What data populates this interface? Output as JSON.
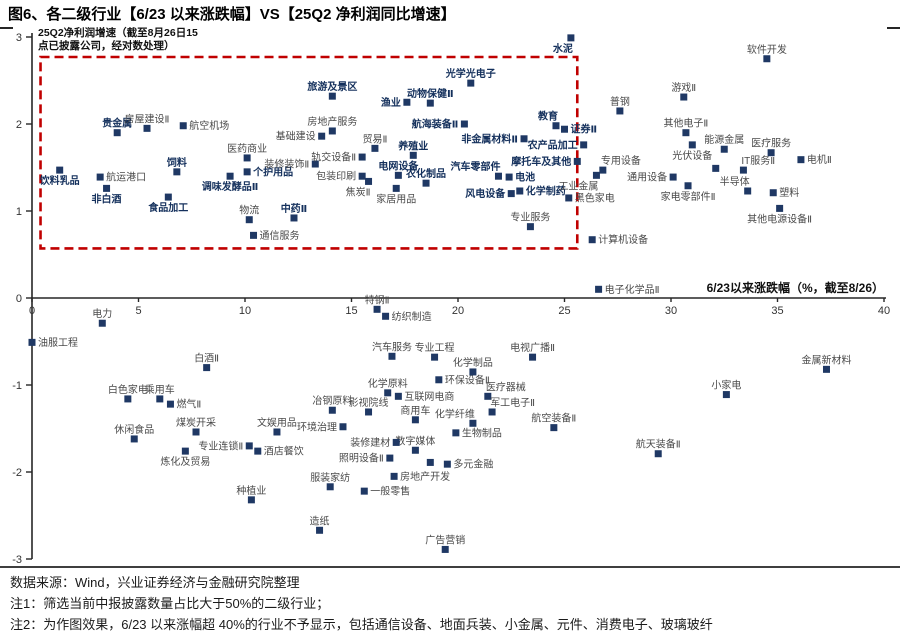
{
  "title": "图6、各二级行业【6/23 以来涨跌幅】VS【25Q2 净利润同比增速】",
  "colors": {
    "point": "#1F3864",
    "bold_label": "#14305C",
    "label": "#4a4a4a",
    "highlight_box": "#C00000",
    "axis": "#262626",
    "tick_label": "#333333"
  },
  "chart_data": {
    "type": "scatter",
    "x_axis": {
      "title": "6/23以来涨跌幅（%，截至8/26）",
      "min": 0,
      "max": 40,
      "ticks": [
        0,
        5,
        10,
        15,
        20,
        25,
        30,
        35,
        40
      ]
    },
    "y_axis": {
      "title": "25Q2净利润增速（截至8月26日15点已披露公司，经对数处理）",
      "min": -3,
      "max": 3,
      "ticks": [
        3,
        2,
        1,
        0,
        -1,
        -2,
        -3
      ]
    },
    "highlight_box": {
      "x1": 0.4,
      "y1": 0.57,
      "x2": 25.6,
      "y2": 2.77
    },
    "points": [
      {
        "t": "饮料乳品",
        "x": 1.3,
        "y": 1.47,
        "lp": "b",
        "b": 1
      },
      {
        "t": "航运港口",
        "x": 3.2,
        "y": 1.39,
        "lp": "r"
      },
      {
        "t": "贵金属",
        "x": 4.0,
        "y": 1.9,
        "lp": "a",
        "b": 1
      },
      {
        "t": "房屋建设Ⅱ",
        "x": 5.4,
        "y": 1.95,
        "lp": "a"
      },
      {
        "t": "航空机场",
        "x": 7.1,
        "y": 1.98,
        "lp": "r"
      },
      {
        "t": "非白酒",
        "x": 3.5,
        "y": 1.26,
        "lp": "b",
        "b": 1
      },
      {
        "t": "饲料",
        "x": 6.8,
        "y": 1.45,
        "lp": "a",
        "b": 1
      },
      {
        "t": "调味发酵品Ⅱ",
        "x": 9.3,
        "y": 1.4,
        "lp": "b",
        "b": 1
      },
      {
        "t": "食品加工",
        "x": 6.4,
        "y": 1.16,
        "lp": "b",
        "b": 1
      },
      {
        "t": "医药商业",
        "x": 10.1,
        "y": 1.61,
        "lp": "a"
      },
      {
        "t": "个护用品",
        "x": 10.1,
        "y": 1.45,
        "lp": "r",
        "b": 1
      },
      {
        "t": "物流",
        "x": 10.2,
        "y": 0.9,
        "lp": "a"
      },
      {
        "t": "中药Ⅱ",
        "x": 12.3,
        "y": 0.92,
        "lp": "a",
        "b": 1
      },
      {
        "t": "通信服务",
        "x": 10.4,
        "y": 0.72,
        "lp": "r"
      },
      {
        "t": "旅游及景区",
        "x": 14.1,
        "y": 2.32,
        "lp": "a",
        "b": 1
      },
      {
        "t": "渔业",
        "x": 17.6,
        "y": 2.25,
        "lp": "l",
        "b": 1
      },
      {
        "t": "动物保健Ⅱ",
        "x": 18.7,
        "y": 2.24,
        "lp": "a",
        "b": 1
      },
      {
        "t": "光学光电子",
        "x": 20.6,
        "y": 2.47,
        "lp": "a",
        "b": 1
      },
      {
        "t": "航海装备Ⅱ",
        "x": 20.3,
        "y": 2.0,
        "lp": "l",
        "b": 1
      },
      {
        "t": "房地产服务",
        "x": 14.1,
        "y": 1.92,
        "lp": "a"
      },
      {
        "t": "基础建设",
        "x": 13.6,
        "y": 1.86,
        "lp": "l"
      },
      {
        "t": "贸易Ⅱ",
        "x": 16.1,
        "y": 1.72,
        "lp": "a"
      },
      {
        "t": "装修装饰Ⅱ",
        "x": 13.3,
        "y": 1.54,
        "lp": "l"
      },
      {
        "t": "轨交设备Ⅱ",
        "x": 15.5,
        "y": 1.62,
        "lp": "l"
      },
      {
        "t": "包装印刷",
        "x": 15.5,
        "y": 1.4,
        "lp": "l"
      },
      {
        "t": "焦炭Ⅱ",
        "x": 15.8,
        "y": 1.34,
        "lp": "bl"
      },
      {
        "t": "电网设备",
        "x": 17.2,
        "y": 1.41,
        "lp": "a",
        "b": 1
      },
      {
        "t": "农化制品",
        "x": 18.5,
        "y": 1.32,
        "lp": "a",
        "b": 1
      },
      {
        "t": "养殖业",
        "x": 17.9,
        "y": 1.64,
        "lp": "a",
        "b": 1
      },
      {
        "t": "家居用品",
        "x": 17.1,
        "y": 1.26,
        "lp": "b"
      },
      {
        "t": "汽车零部件",
        "x": 21.9,
        "y": 1.4,
        "lp": "al",
        "b": 1
      },
      {
        "t": "电池",
        "x": 22.4,
        "y": 1.39,
        "lp": "r",
        "b": 1
      },
      {
        "t": "风电设备",
        "x": 22.5,
        "y": 1.2,
        "lp": "l",
        "b": 1
      },
      {
        "t": "化学制药",
        "x": 22.9,
        "y": 1.23,
        "lp": "r",
        "b": 1
      },
      {
        "t": "专业服务",
        "x": 23.4,
        "y": 0.82,
        "lp": "a"
      },
      {
        "t": "非金属材料Ⅱ",
        "x": 23.1,
        "y": 1.83,
        "lp": "l",
        "b": 1
      },
      {
        "t": "农产品加工",
        "x": 25.9,
        "y": 1.76,
        "lp": "l",
        "b": 1
      },
      {
        "t": "摩托车及其他",
        "x": 25.6,
        "y": 1.57,
        "lp": "l",
        "b": 1
      },
      {
        "t": "教育",
        "x": 24.6,
        "y": 1.98,
        "lp": "al",
        "b": 1
      },
      {
        "t": "证券Ⅱ",
        "x": 25.0,
        "y": 1.94,
        "lp": "r",
        "b": 1
      },
      {
        "t": "水泥",
        "x": 25.3,
        "y": 2.99,
        "lp": "bl",
        "b": 1
      },
      {
        "t": "黑色家电",
        "x": 25.2,
        "y": 1.15,
        "lp": "r"
      },
      {
        "t": "工业金属",
        "x": 26.5,
        "y": 1.41,
        "lp": "bl"
      },
      {
        "t": "专用设备",
        "x": 26.8,
        "y": 1.47,
        "lp": "ar"
      },
      {
        "t": "通用设备",
        "x": 30.1,
        "y": 1.39,
        "lp": "l"
      },
      {
        "t": "家电零部件Ⅱ",
        "x": 30.8,
        "y": 1.29,
        "lp": "b"
      },
      {
        "t": "普钢",
        "x": 27.6,
        "y": 2.15,
        "lp": "a"
      },
      {
        "t": "游戏Ⅱ",
        "x": 30.6,
        "y": 2.31,
        "lp": "a"
      },
      {
        "t": "软件开发",
        "x": 34.5,
        "y": 2.75,
        "lp": "a"
      },
      {
        "t": "其他电子Ⅱ",
        "x": 30.7,
        "y": 1.9,
        "lp": "a"
      },
      {
        "t": "光伏设备",
        "x": 31.0,
        "y": 1.76,
        "lp": "b"
      },
      {
        "t": "能源金属",
        "x": 32.5,
        "y": 1.71,
        "lp": "a"
      },
      {
        "t": "医疗服务",
        "x": 34.7,
        "y": 1.67,
        "lp": "a"
      },
      {
        "t": "电机Ⅱ",
        "x": 36.1,
        "y": 1.59,
        "lp": "r"
      },
      {
        "t": "IT服务Ⅱ",
        "x": 33.4,
        "y": 1.47,
        "lp": "ar"
      },
      {
        "t": "半导体",
        "x": 33.6,
        "y": 1.23,
        "lp": "al"
      },
      {
        "t": "塑料",
        "x": 34.8,
        "y": 1.21,
        "lp": "r"
      },
      {
        "t": "其他电源设备Ⅱ",
        "x": 35.1,
        "y": 1.03,
        "lp": "b"
      },
      {
        "t": "计算机设备",
        "x": 26.3,
        "y": 0.67,
        "lp": "r"
      },
      {
        "t": "电子化学品Ⅱ",
        "x": 26.6,
        "y": 0.1,
        "lp": "r"
      },
      {
        "t": "",
        "x": 32.1,
        "y": 1.49,
        "lp": "a"
      },
      {
        "t": "电力",
        "x": 3.3,
        "y": -0.29,
        "lp": "a"
      },
      {
        "t": "油服工程",
        "x": 0.0,
        "y": -0.51,
        "lp": "r"
      },
      {
        "t": "特钢Ⅱ",
        "x": 16.2,
        "y": -0.13,
        "lp": "a"
      },
      {
        "t": "纺织制造",
        "x": 16.6,
        "y": -0.21,
        "lp": "r"
      },
      {
        "t": "白酒Ⅱ",
        "x": 8.2,
        "y": -0.8,
        "lp": "a"
      },
      {
        "t": "白色家电",
        "x": 4.5,
        "y": -1.16,
        "lp": "a"
      },
      {
        "t": "乘用车",
        "x": 6.0,
        "y": -1.16,
        "lp": "a"
      },
      {
        "t": "燃气Ⅱ",
        "x": 6.5,
        "y": -1.22,
        "lp": "r"
      },
      {
        "t": "休闲食品",
        "x": 4.8,
        "y": -1.62,
        "lp": "a"
      },
      {
        "t": "煤炭开采",
        "x": 7.7,
        "y": -1.54,
        "lp": "a"
      },
      {
        "t": "炼化及贸易",
        "x": 7.2,
        "y": -1.76,
        "lp": "b"
      },
      {
        "t": "专业连锁Ⅱ",
        "x": 10.2,
        "y": -1.7,
        "lp": "l"
      },
      {
        "t": "酒店餐饮",
        "x": 10.6,
        "y": -1.76,
        "lp": "r"
      },
      {
        "t": "文娱用品",
        "x": 11.5,
        "y": -1.54,
        "lp": "a"
      },
      {
        "t": "环境治理",
        "x": 14.6,
        "y": -1.48,
        "lp": "l"
      },
      {
        "t": "冶钢原料",
        "x": 14.1,
        "y": -1.29,
        "lp": "a"
      },
      {
        "t": "影视院线",
        "x": 15.8,
        "y": -1.31,
        "lp": "a"
      },
      {
        "t": "汽车服务",
        "x": 16.9,
        "y": -0.67,
        "lp": "a"
      },
      {
        "t": "专业工程",
        "x": 18.9,
        "y": -0.68,
        "lp": "a"
      },
      {
        "t": "化学原料",
        "x": 16.7,
        "y": -1.09,
        "lp": "a"
      },
      {
        "t": "互联网电商",
        "x": 17.2,
        "y": -1.13,
        "lp": "r"
      },
      {
        "t": "环保设备Ⅱ",
        "x": 19.1,
        "y": -0.94,
        "lp": "r"
      },
      {
        "t": "化学制品",
        "x": 20.7,
        "y": -0.85,
        "lp": "a"
      },
      {
        "t": "电视广播Ⅱ",
        "x": 23.5,
        "y": -0.68,
        "lp": "a"
      },
      {
        "t": "医疗器械",
        "x": 21.4,
        "y": -1.13,
        "lp": "ar"
      },
      {
        "t": "军工电子Ⅱ",
        "x": 21.6,
        "y": -1.31,
        "lp": "ar"
      },
      {
        "t": "商用车",
        "x": 18.0,
        "y": -1.4,
        "lp": "a"
      },
      {
        "t": "化学纤维",
        "x": 20.7,
        "y": -1.44,
        "lp": "al"
      },
      {
        "t": "生物制品",
        "x": 19.9,
        "y": -1.55,
        "lp": "r"
      },
      {
        "t": "航空装备Ⅱ",
        "x": 24.5,
        "y": -1.49,
        "lp": "a"
      },
      {
        "t": "数字媒体",
        "x": 18.0,
        "y": -1.75,
        "lp": "a"
      },
      {
        "t": "装修建材",
        "x": 17.1,
        "y": -1.66,
        "lp": "l"
      },
      {
        "t": "照明设备Ⅱ",
        "x": 16.8,
        "y": -1.84,
        "lp": "l"
      },
      {
        "t": "多元金融",
        "x": 19.5,
        "y": -1.91,
        "lp": "r"
      },
      {
        "t": "",
        "x": 18.7,
        "y": -1.89,
        "lp": "a"
      },
      {
        "t": "房地产开发",
        "x": 17.0,
        "y": -2.05,
        "lp": "r"
      },
      {
        "t": "服装家纺",
        "x": 14.0,
        "y": -2.17,
        "lp": "a"
      },
      {
        "t": "一般零售",
        "x": 15.6,
        "y": -2.22,
        "lp": "r"
      },
      {
        "t": "种植业",
        "x": 10.3,
        "y": -2.32,
        "lp": "a"
      },
      {
        "t": "造纸",
        "x": 13.5,
        "y": -2.67,
        "lp": "a"
      },
      {
        "t": "广告营销",
        "x": 19.4,
        "y": -2.89,
        "lp": "a"
      },
      {
        "t": "小家电",
        "x": 32.6,
        "y": -1.11,
        "lp": "a"
      },
      {
        "t": "金属新材料",
        "x": 37.3,
        "y": -0.82,
        "lp": "a"
      },
      {
        "t": "航天装备Ⅱ",
        "x": 29.4,
        "y": -1.79,
        "lp": "a"
      }
    ]
  },
  "footer": {
    "source": "数据来源：Wind，兴业证券经济与金融研究院整理",
    "note1": "注1：筛选当前中报披露数量占比大于50%的二级行业；",
    "note2": "注2：为作图效果，6/23 以来涨幅超 40%的行业不予显示，包括通信设备、地面兵装、小金属、元件、消费电子、玻璃玻纤"
  }
}
